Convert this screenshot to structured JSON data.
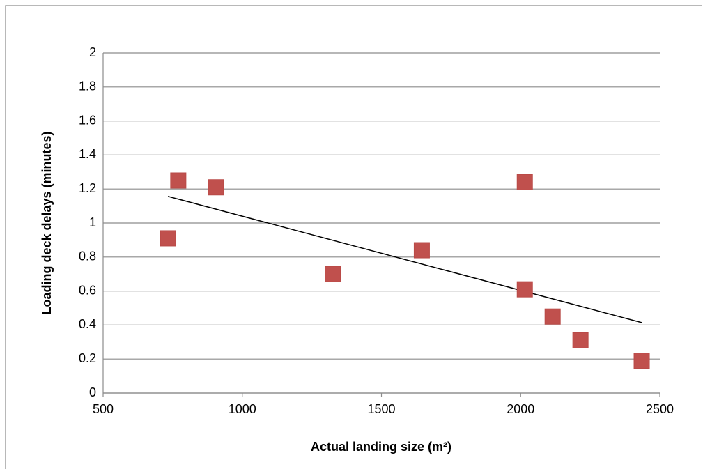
{
  "chart_data": {
    "type": "scatter",
    "x_label": "Actual landing size (m²)",
    "y_label": "Loading deck delays (minutes)",
    "x": [
      733,
      770,
      905,
      1325,
      1645,
      2015,
      2015,
      2115,
      2215,
      2435
    ],
    "series": [
      {
        "name": "Loading deck delays",
        "color": "#c0504d",
        "values": [
          0.91,
          1.25,
          1.21,
          0.7,
          0.84,
          1.24,
          0.61,
          0.45,
          0.31,
          0.19
        ]
      }
    ],
    "trendline": "linear",
    "xlim": [
      500,
      2500
    ],
    "xticks": [
      500,
      1000,
      1500,
      2000,
      2500
    ],
    "ylim": [
      0,
      2
    ],
    "yticks": [
      0,
      0.2,
      0.4,
      0.6,
      0.8,
      1,
      1.2,
      1.4,
      1.6,
      1.8,
      2
    ],
    "grid": true
  }
}
